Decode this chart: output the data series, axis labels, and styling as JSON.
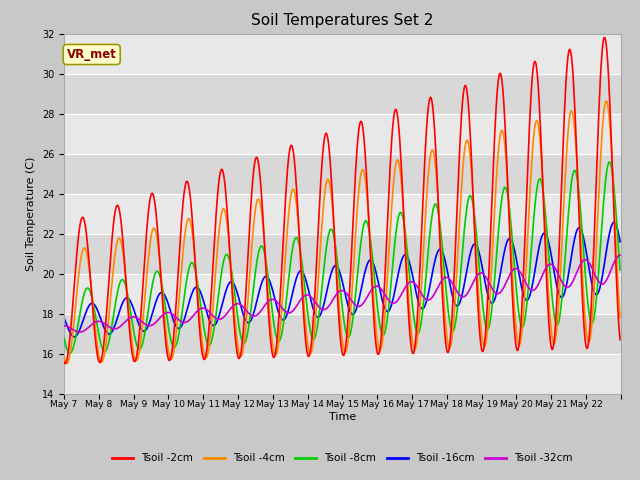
{
  "title": "Soil Temperatures Set 2",
  "xlabel": "Time",
  "ylabel": "Soil Temperature (C)",
  "ylim": [
    14,
    32
  ],
  "yticks": [
    14,
    16,
    18,
    20,
    22,
    24,
    26,
    28,
    30,
    32
  ],
  "annotation": "VR_met",
  "fig_bg": "#c8c8c8",
  "plot_bg_light": "#e8e8e8",
  "plot_bg_dark": "#d8d8d8",
  "series_colors": {
    "Tsoil -2cm": "#ff0000",
    "Tsoil -4cm": "#ff8800",
    "Tsoil -8cm": "#00cc00",
    "Tsoil -16cm": "#0000ff",
    "Tsoil -32cm": "#cc00cc"
  },
  "n_days": 16,
  "samples_per_day": 48,
  "legend_labels": [
    "Tsoil -2cm",
    "Tsoil -4cm",
    "Tsoil -8cm",
    "Tsoil -16cm",
    "Tsoil -32cm"
  ]
}
